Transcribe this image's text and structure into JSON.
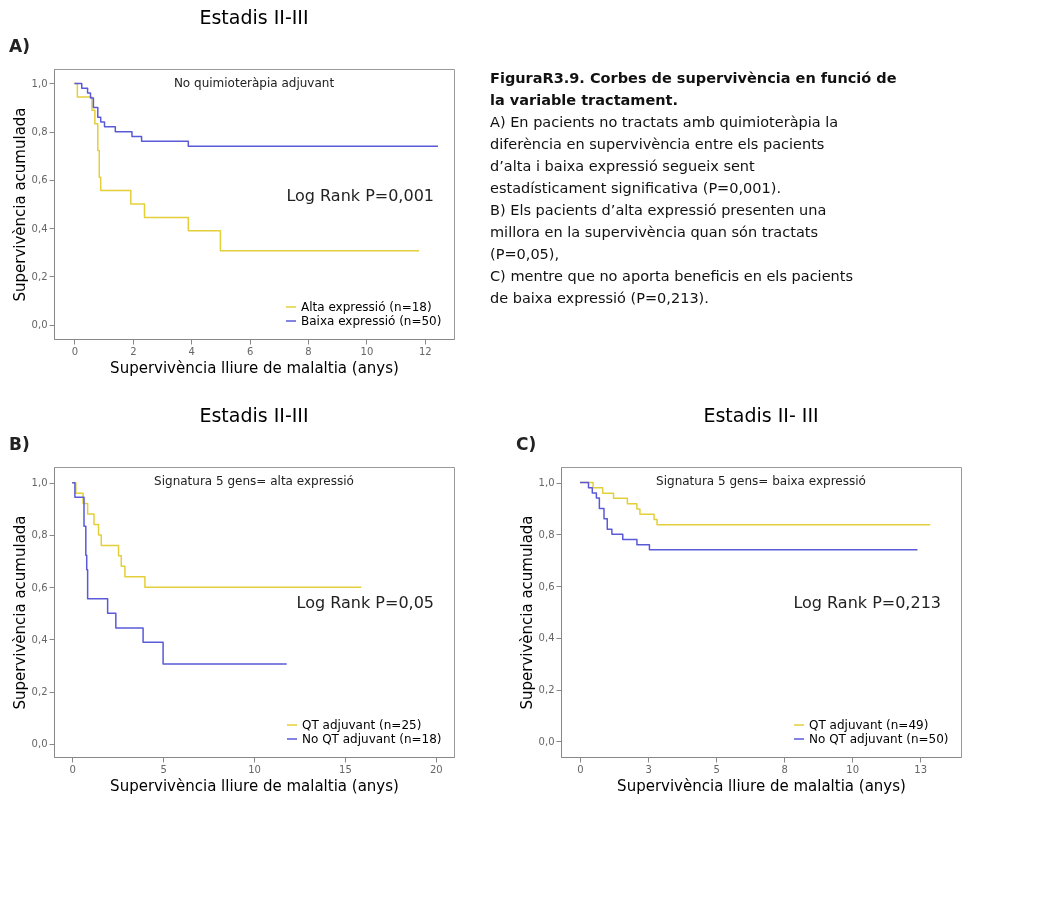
{
  "chart_data": [
    {
      "type": "step",
      "title": "Estadis II-III",
      "xlabel": "Supervivència lliure de malaltia (anys)",
      "ylabel": "Supervivència acumulada",
      "annotations": [
        "A)",
        "No quimioteràpia adjuvant",
        "Log Rank P=0,001"
      ],
      "series": [
        {
          "name": "Alta expressió (n=18)",
          "color": "#e3cf3a",
          "x": [
            0,
            0.1,
            0.6,
            0.7,
            0.8,
            0.85,
            0.9,
            1.93,
            2.4,
            3.9,
            5.0,
            11.8
          ],
          "values": [
            1.0,
            0.944,
            0.889,
            0.833,
            0.722,
            0.611,
            0.556,
            0.5,
            0.444,
            0.389,
            0.306,
            0.306
          ]
        },
        {
          "name": "Baixa expressió (n=50)",
          "color": "#5a5ad8",
          "x": [
            0,
            0.25,
            0.45,
            0.55,
            0.65,
            0.8,
            0.9,
            1.03,
            1.4,
            1.97,
            2.3,
            3.9,
            12.45
          ],
          "values": [
            1.0,
            0.98,
            0.96,
            0.94,
            0.9,
            0.86,
            0.84,
            0.82,
            0.8,
            0.78,
            0.76,
            0.74,
            0.74
          ]
        }
      ],
      "xlim": [
        -0.7,
        13
      ],
      "ylim": [
        -0.06,
        1.06
      ],
      "xticks": [
        0,
        2,
        4,
        6,
        8,
        10,
        12
      ],
      "yticks": [
        {
          "value": 0,
          "label": "0,0"
        },
        {
          "value": 0.2,
          "label": "0,2"
        },
        {
          "value": 0.4,
          "label": "0,4"
        },
        {
          "value": 0.6,
          "label": "0,6"
        },
        {
          "value": 0.8,
          "label": "0,8"
        },
        {
          "value": 1,
          "label": "1,0"
        }
      ],
      "legend": "bottom right"
    },
    {
      "type": "other",
      "title": "FiguraR3.9. Corbes de supervivència en funció de la variable tractament.",
      "annotations": [
        "A) En pacients no tractats amb quimioteràpia la diferència en supervivència entre els pacients d’alta i baixa expressió segueix sent estadísticament significativa (P=0,001).",
        "B) Els pacients d’alta expressió presenten una millora en la supervivència quan són tractats (P=0,05),",
        "C) mentre que no aporta beneficis en els pacients de baixa expressió (P=0,213)."
      ]
    },
    {
      "type": "step",
      "title": "Estadis II-III",
      "xlabel": "Supervivència lliure de malaltia (anys)",
      "ylabel": "Supervivència acumulada",
      "annotations": [
        "B)",
        "Signatura 5 gens= alta expressió",
        "Log Rank P=0,05"
      ],
      "series": [
        {
          "name": "QT adjuvant (n=25)",
          "color": "#e3cf3a",
          "x": [
            0,
            0.2,
            0.6,
            0.85,
            1.2,
            1.45,
            1.6,
            2.55,
            2.7,
            2.9,
            4.0,
            15.9
          ],
          "values": [
            1.0,
            0.96,
            0.92,
            0.88,
            0.84,
            0.8,
            0.76,
            0.72,
            0.68,
            0.64,
            0.6,
            0.6
          ]
        },
        {
          "name": "No QT adjuvant (n=18)",
          "color": "#5a5ad8",
          "x": [
            0,
            0.15,
            0.65,
            0.75,
            0.8,
            0.85,
            1.95,
            2.4,
            3.9,
            5.0,
            11.8
          ],
          "values": [
            1.0,
            0.944,
            0.833,
            0.722,
            0.667,
            0.556,
            0.5,
            0.444,
            0.389,
            0.306,
            0.306
          ]
        }
      ],
      "xlim": [
        -1,
        21
      ],
      "ylim": [
        -0.05,
        1.06
      ],
      "xticks": [
        0,
        5,
        10,
        15,
        20
      ],
      "yticks": [
        {
          "value": 0,
          "label": "0,0"
        },
        {
          "value": 0.2,
          "label": "0,2"
        },
        {
          "value": 0.4,
          "label": "0,4"
        },
        {
          "value": 0.6,
          "label": "0,6"
        },
        {
          "value": 0.8,
          "label": "0,8"
        },
        {
          "value": 1,
          "label": "1,0"
        }
      ],
      "legend": "bottom right"
    },
    {
      "type": "step",
      "title": "Estadis II- III",
      "xlabel": "Supervivència lliure de malaltia (anys)",
      "ylabel": "Supervivència acumulada",
      "annotations": [
        "C)",
        "Signatura 5 gens= baixa expressió",
        "Log Rank P=0,213"
      ],
      "series": [
        {
          "name": "QT adjuvant (n=49)",
          "color": "#e3cf3a",
          "x": [
            0,
            0.48,
            0.83,
            1.23,
            1.74,
            2.09,
            2.2,
            2.72,
            2.83,
            12.87
          ],
          "values": [
            1.0,
            0.98,
            0.959,
            0.939,
            0.918,
            0.898,
            0.878,
            0.857,
            0.837,
            0.837
          ]
        },
        {
          "name": "No QT adjuvant (n=50)",
          "color": "#5a5ad8",
          "x": [
            0,
            0.31,
            0.45,
            0.6,
            0.71,
            0.88,
            1.0,
            1.17,
            1.57,
            2.09,
            2.55,
            3.86,
            12.4
          ],
          "values": [
            1.0,
            0.98,
            0.96,
            0.94,
            0.9,
            0.86,
            0.82,
            0.8,
            0.78,
            0.76,
            0.74,
            0.74,
            0.74
          ]
        }
      ],
      "xlim": [
        -0.7,
        14
      ],
      "ylim": [
        -0.06,
        1.06
      ],
      "xticks": [
        0,
        {
          "value": 2.5,
          "label": "3"
        },
        5,
        {
          "value": 7.5,
          "label": "8"
        },
        10,
        {
          "value": 12.5,
          "label": "13"
        }
      ],
      "yticks": [
        {
          "value": 0,
          "label": "0,0"
        },
        {
          "value": 0.2,
          "label": "0,2"
        },
        {
          "value": 0.4,
          "label": "0,4"
        },
        {
          "value": 0.6,
          "label": "0,6"
        },
        {
          "value": 0.8,
          "label": "0,8"
        },
        {
          "value": 1,
          "label": "1,0"
        }
      ],
      "legend": "bottom right"
    }
  ]
}
